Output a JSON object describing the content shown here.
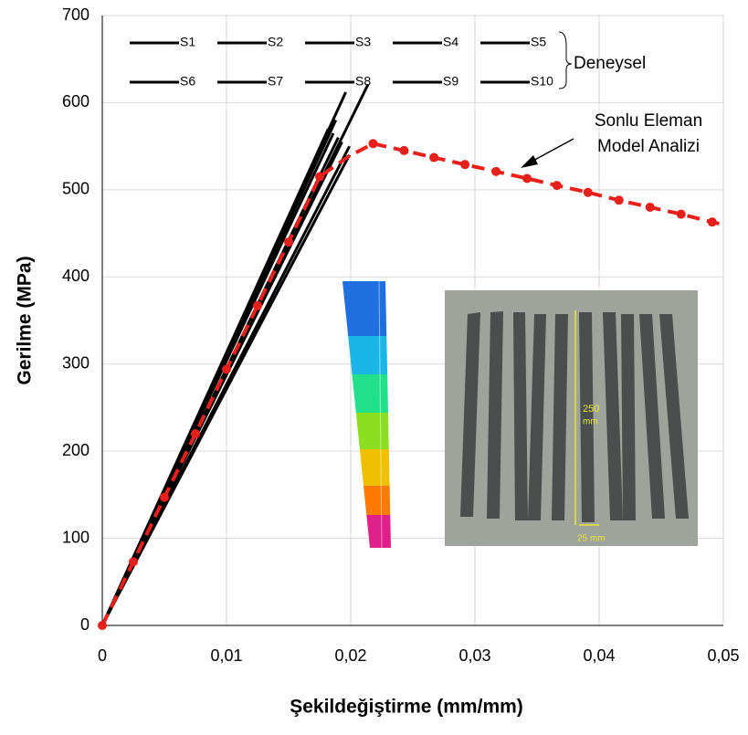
{
  "chart_data": {
    "type": "line",
    "x_label": "Şekildeğiştirme (mm/mm)",
    "y_label": "Gerilme (MPa)",
    "xlim": [
      0,
      0.05
    ],
    "ylim": [
      0,
      700
    ],
    "xticks": [
      0,
      {
        "value": 0.01,
        "label": "0,01"
      },
      {
        "value": 0.02,
        "label": "0,02"
      },
      {
        "value": 0.03,
        "label": "0,03"
      },
      {
        "value": 0.04,
        "label": "0,04"
      },
      {
        "value": 0.05,
        "label": "0,05"
      }
    ],
    "yticks": [
      0,
      100,
      200,
      300,
      400,
      500,
      600,
      700
    ],
    "grid": true,
    "legend_group": "Deneysel",
    "series": [
      {
        "name": "S1",
        "color": "#000000",
        "x": [
          0,
          0.0196
        ],
        "values": [
          0,
          612
        ]
      },
      {
        "name": "S2",
        "color": "#000000",
        "x": [
          0,
          0.0214
        ],
        "values": [
          0,
          621
        ]
      },
      {
        "name": "S3",
        "color": "#000000",
        "x": [
          0,
          0.0188
        ],
        "values": [
          0,
          580
        ]
      },
      {
        "name": "S4",
        "color": "#000000",
        "x": [
          0,
          0.0185
        ],
        "values": [
          0,
          575
        ]
      },
      {
        "name": "S5",
        "color": "#000000",
        "x": [
          0,
          0.0199
        ],
        "values": [
          0,
          550
        ]
      },
      {
        "name": "S6",
        "color": "#000000",
        "x": [
          0,
          0.0199
        ],
        "values": [
          0,
          540
        ]
      },
      {
        "name": "S7",
        "color": "#000000",
        "x": [
          0,
          0.0182
        ],
        "values": [
          0,
          570
        ]
      },
      {
        "name": "S8",
        "color": "#000000",
        "x": [
          0,
          0.019
        ],
        "values": [
          0,
          560
        ]
      },
      {
        "name": "S9",
        "color": "#000000",
        "x": [
          0,
          0.0193
        ],
        "values": [
          0,
          555
        ]
      },
      {
        "name": "S10",
        "color": "#000000",
        "x": [
          0,
          0.0186
        ],
        "values": [
          0,
          565
        ]
      }
    ],
    "model": {
      "color": "#e8201c",
      "x": [
        0,
        0.0025,
        0.005,
        0.0075,
        0.01,
        0.0125,
        0.015,
        0.0175,
        0.0198,
        0.0218,
        0.0243,
        0.0267,
        0.0292,
        0.0317,
        0.0342,
        0.0366,
        0.0391,
        0.0416,
        0.0441,
        0.0466,
        0.0491,
        0.05
      ],
      "values": [
        0,
        73,
        147,
        220,
        294,
        367,
        440,
        515,
        538,
        553,
        545,
        537,
        529,
        521,
        513,
        505,
        497,
        488,
        480,
        472,
        463,
        460
      ],
      "markers": [
        true,
        true,
        true,
        true,
        true,
        true,
        true,
        true,
        false,
        true,
        true,
        true,
        true,
        true,
        true,
        true,
        true,
        true,
        true,
        true,
        true,
        false
      ]
    },
    "annotation": [
      "Sonlu Eleman",
      "Model Analizi"
    ],
    "inset_labels": [
      "250",
      "mm",
      "25 mm"
    ]
  }
}
